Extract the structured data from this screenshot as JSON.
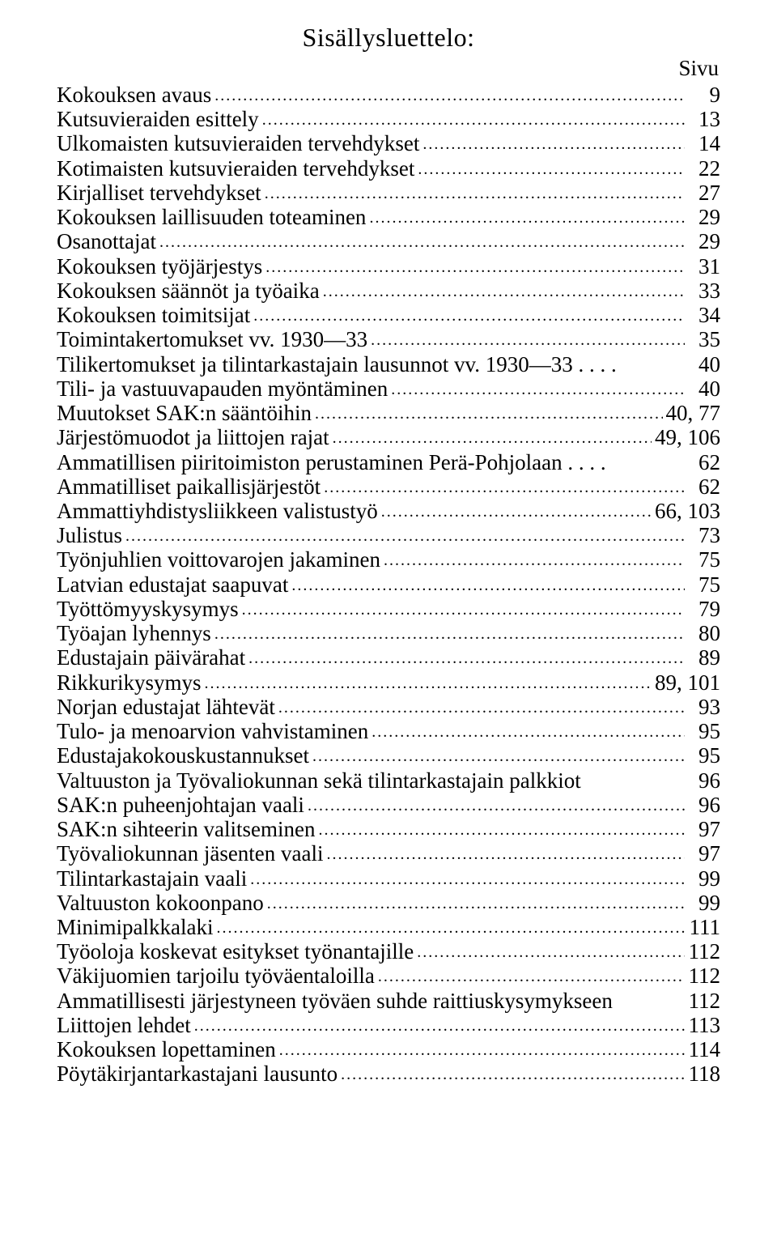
{
  "title": "Sisällysluettelo:",
  "page_label": "Sivu",
  "entries": [
    {
      "label": "Kokouksen avaus",
      "page": "9",
      "dots": true
    },
    {
      "label": "Kutsuvieraiden esittely",
      "page": "13",
      "dots": true
    },
    {
      "label": "Ulkomaisten kutsuvieraiden tervehdykset",
      "page": "14",
      "dots": true
    },
    {
      "label": "Kotimaisten kutsuvieraiden tervehdykset",
      "page": "22",
      "dots": true
    },
    {
      "label": "Kirjalliset tervehdykset",
      "page": "27",
      "dots": true
    },
    {
      "label": "Kokouksen laillisuuden toteaminen",
      "page": "29",
      "dots": true
    },
    {
      "label": "Osanottajat",
      "page": "29",
      "dots": true
    },
    {
      "label": "Kokouksen työjärjestys",
      "page": "31",
      "dots": true
    },
    {
      "label": "Kokouksen säännöt ja työaika",
      "page": "33",
      "dots": true
    },
    {
      "label": "Kokouksen toimitsijat",
      "page": "34",
      "dots": true
    },
    {
      "label": "Toimintakertomukset vv. 1930—33",
      "page": "35",
      "dots": true
    },
    {
      "label": "Tilikertomukset ja tilintarkastajain lausunnot vv. 1930—33 . . . .",
      "page": "40",
      "dots": false
    },
    {
      "label": "Tili- ja vastuuvapauden myöntäminen",
      "page": "40",
      "dots": true
    },
    {
      "label": "Muutokset SAK:n sääntöihin",
      "page": "40,   77",
      "dots": true
    },
    {
      "label": "Järjestömuodot ja liittojen rajat",
      "page": "49,  106",
      "dots": true
    },
    {
      "label": "Ammatillisen piiritoimiston perustaminen Perä-Pohjolaan . . . .",
      "page": "62",
      "dots": false
    },
    {
      "label": "Ammatilliset paikallisjärjestöt",
      "page": "62",
      "dots": true
    },
    {
      "label": "Ammattiyhdistysliikkeen valistustyö",
      "page": "66,  103",
      "dots": true
    },
    {
      "label": "Julistus",
      "page": "73",
      "dots": true
    },
    {
      "label": "Työnjuhlien voittovarojen jakaminen",
      "page": "75",
      "dots": true
    },
    {
      "label": "Latvian edustajat saapuvat",
      "page": "75",
      "dots": true
    },
    {
      "label": "Työttömyyskysymys",
      "page": "79",
      "dots": true
    },
    {
      "label": "Työajan lyhennys",
      "page": "80",
      "dots": true
    },
    {
      "label": "Edustajain päivärahat",
      "page": "89",
      "dots": true
    },
    {
      "label": "Rikkurikysymys",
      "page": "89,  101",
      "dots": true
    },
    {
      "label": "Norjan edustajat lähtevät",
      "page": "93",
      "dots": true
    },
    {
      "label": "Tulo- ja menoarvion vahvistaminen",
      "page": "95",
      "dots": true
    },
    {
      "label": "Edustajakokouskustannukset",
      "page": "95",
      "dots": true
    },
    {
      "label": "Valtuuston  ja  Työvaliokunnan  sekä  tilintarkastajain  palkkiot",
      "page": "96",
      "dots": false
    },
    {
      "label": "SAK:n puheenjohtajan vaali",
      "page": "96",
      "dots": true
    },
    {
      "label": "SAK:n sihteerin valitseminen",
      "page": "97",
      "dots": true
    },
    {
      "label": "Työvaliokunnan jäsenten vaali",
      "page": "97",
      "dots": true
    },
    {
      "label": "Tilintarkastajain vaali",
      "page": "99",
      "dots": true
    },
    {
      "label": "Valtuuston kokoonpano",
      "page": "99",
      "dots": true
    },
    {
      "label": "Minimipalkkalaki",
      "page": "111",
      "dots": true
    },
    {
      "label": "Työoloja koskevat esitykset työnantajille",
      "page": "112",
      "dots": true
    },
    {
      "label": "Väkijuomien tarjoilu työväentaloilla",
      "page": "112",
      "dots": true
    },
    {
      "label": "Ammatillisesti järjestyneen työväen suhde raittiuskysymykseen",
      "page": "112",
      "dots": false
    },
    {
      "label": "Liittojen lehdet",
      "page": "113",
      "dots": true
    },
    {
      "label": "Kokouksen lopettaminen",
      "page": "114",
      "dots": true
    },
    {
      "label": "Pöytäkirjantarkastajani lausunto",
      "page": "118",
      "dots": true
    }
  ]
}
